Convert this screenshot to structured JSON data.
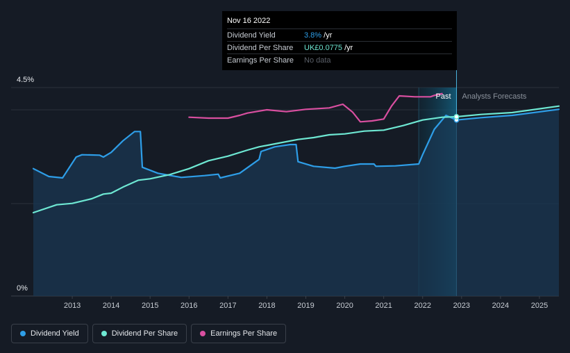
{
  "tooltip": {
    "date": "Nov 16 2022",
    "rows": [
      {
        "label": "Dividend Yield",
        "value": "3.8%",
        "unit": " /yr",
        "color": "#2e9ee8"
      },
      {
        "label": "Dividend Per Share",
        "value": "UK£0.0775",
        "unit": " /yr",
        "color": "#6ee8d3"
      },
      {
        "label": "Earnings Per Share",
        "value": "No data",
        "unit": "",
        "color": "#5b6069"
      }
    ]
  },
  "legend": [
    {
      "label": "Dividend Yield",
      "color": "#2e9ee8"
    },
    {
      "label": "Dividend Per Share",
      "color": "#6ee8d3"
    },
    {
      "label": "Earnings Per Share",
      "color": "#d94fa0"
    }
  ],
  "chart_data": {
    "type": "line",
    "title": "",
    "xlabel": "",
    "ylabel": "",
    "xlim": [
      2012.0,
      2025.5
    ],
    "ylim": [
      0,
      4.5
    ],
    "y_tick_labels": [
      "4.5%",
      "0%"
    ],
    "x_ticks": [
      2013,
      2014,
      2015,
      2016,
      2017,
      2018,
      2019,
      2020,
      2021,
      2022,
      2023,
      2024,
      2025
    ],
    "past_label": "Past",
    "forecast_label": "Analysts Forecasts",
    "forecast_start": 2022.87,
    "forecast_band_start": 2021.9,
    "series": [
      {
        "name": "Dividend Yield",
        "color": "#2e9ee8",
        "fill": true,
        "points": [
          [
            2012.0,
            2.75
          ],
          [
            2012.4,
            2.58
          ],
          [
            2012.75,
            2.55
          ],
          [
            2013.1,
            3.0
          ],
          [
            2013.25,
            3.05
          ],
          [
            2013.7,
            3.04
          ],
          [
            2013.8,
            3.0
          ],
          [
            2014.0,
            3.1
          ],
          [
            2014.3,
            3.35
          ],
          [
            2014.6,
            3.55
          ],
          [
            2014.75,
            3.55
          ],
          [
            2014.8,
            2.78
          ],
          [
            2015.2,
            2.65
          ],
          [
            2015.8,
            2.56
          ],
          [
            2016.4,
            2.6
          ],
          [
            2016.75,
            2.63
          ],
          [
            2016.8,
            2.55
          ],
          [
            2017.3,
            2.65
          ],
          [
            2017.8,
            2.95
          ],
          [
            2017.85,
            3.12
          ],
          [
            2018.2,
            3.22
          ],
          [
            2018.6,
            3.27
          ],
          [
            2018.75,
            3.27
          ],
          [
            2018.8,
            2.9
          ],
          [
            2019.2,
            2.8
          ],
          [
            2019.75,
            2.76
          ],
          [
            2020.0,
            2.8
          ],
          [
            2020.4,
            2.85
          ],
          [
            2020.75,
            2.85
          ],
          [
            2020.8,
            2.8
          ],
          [
            2021.3,
            2.81
          ],
          [
            2021.9,
            2.85
          ],
          [
            2022.0,
            3.05
          ],
          [
            2022.3,
            3.6
          ],
          [
            2022.6,
            3.9
          ],
          [
            2022.87,
            3.8
          ],
          [
            2023.5,
            3.85
          ],
          [
            2024.3,
            3.9
          ],
          [
            2025.5,
            4.03
          ]
        ]
      },
      {
        "name": "Dividend Per Share",
        "color": "#6ee8d3",
        "fill": false,
        "points": [
          [
            2012.0,
            1.8
          ],
          [
            2012.6,
            1.97
          ],
          [
            2013.0,
            2.0
          ],
          [
            2013.5,
            2.1
          ],
          [
            2013.8,
            2.2
          ],
          [
            2014.0,
            2.22
          ],
          [
            2014.3,
            2.35
          ],
          [
            2014.7,
            2.5
          ],
          [
            2015.0,
            2.53
          ],
          [
            2015.5,
            2.62
          ],
          [
            2016.0,
            2.75
          ],
          [
            2016.5,
            2.92
          ],
          [
            2017.0,
            3.02
          ],
          [
            2017.5,
            3.15
          ],
          [
            2017.8,
            3.22
          ],
          [
            2018.3,
            3.3
          ],
          [
            2018.8,
            3.38
          ],
          [
            2019.2,
            3.42
          ],
          [
            2019.6,
            3.48
          ],
          [
            2020.0,
            3.5
          ],
          [
            2020.5,
            3.56
          ],
          [
            2021.0,
            3.58
          ],
          [
            2021.5,
            3.68
          ],
          [
            2022.0,
            3.8
          ],
          [
            2022.5,
            3.86
          ],
          [
            2022.87,
            3.87
          ],
          [
            2023.5,
            3.92
          ],
          [
            2024.3,
            3.96
          ],
          [
            2025.5,
            4.1
          ]
        ]
      },
      {
        "name": "Earnings Per Share",
        "color": "#d94fa0",
        "fill": false,
        "points": [
          [
            2016.0,
            3.86
          ],
          [
            2016.5,
            3.84
          ],
          [
            2017.0,
            3.84
          ],
          [
            2017.3,
            3.9
          ],
          [
            2017.5,
            3.95
          ],
          [
            2018.0,
            4.02
          ],
          [
            2018.5,
            3.98
          ],
          [
            2019.0,
            4.03
          ],
          [
            2019.6,
            4.06
          ],
          [
            2019.95,
            4.14
          ],
          [
            2020.2,
            3.97
          ],
          [
            2020.4,
            3.76
          ],
          [
            2020.7,
            3.78
          ],
          [
            2021.0,
            3.82
          ],
          [
            2021.2,
            4.1
          ],
          [
            2021.4,
            4.32
          ],
          [
            2021.8,
            4.3
          ],
          [
            2022.2,
            4.3
          ],
          [
            2022.3,
            4.33
          ],
          [
            2022.5,
            4.37
          ]
        ]
      }
    ],
    "markers": [
      {
        "series": "Dividend Yield",
        "x": 2022.87,
        "y": 3.8
      },
      {
        "series": "Dividend Per Share",
        "x": 2022.87,
        "y": 3.87
      }
    ]
  }
}
